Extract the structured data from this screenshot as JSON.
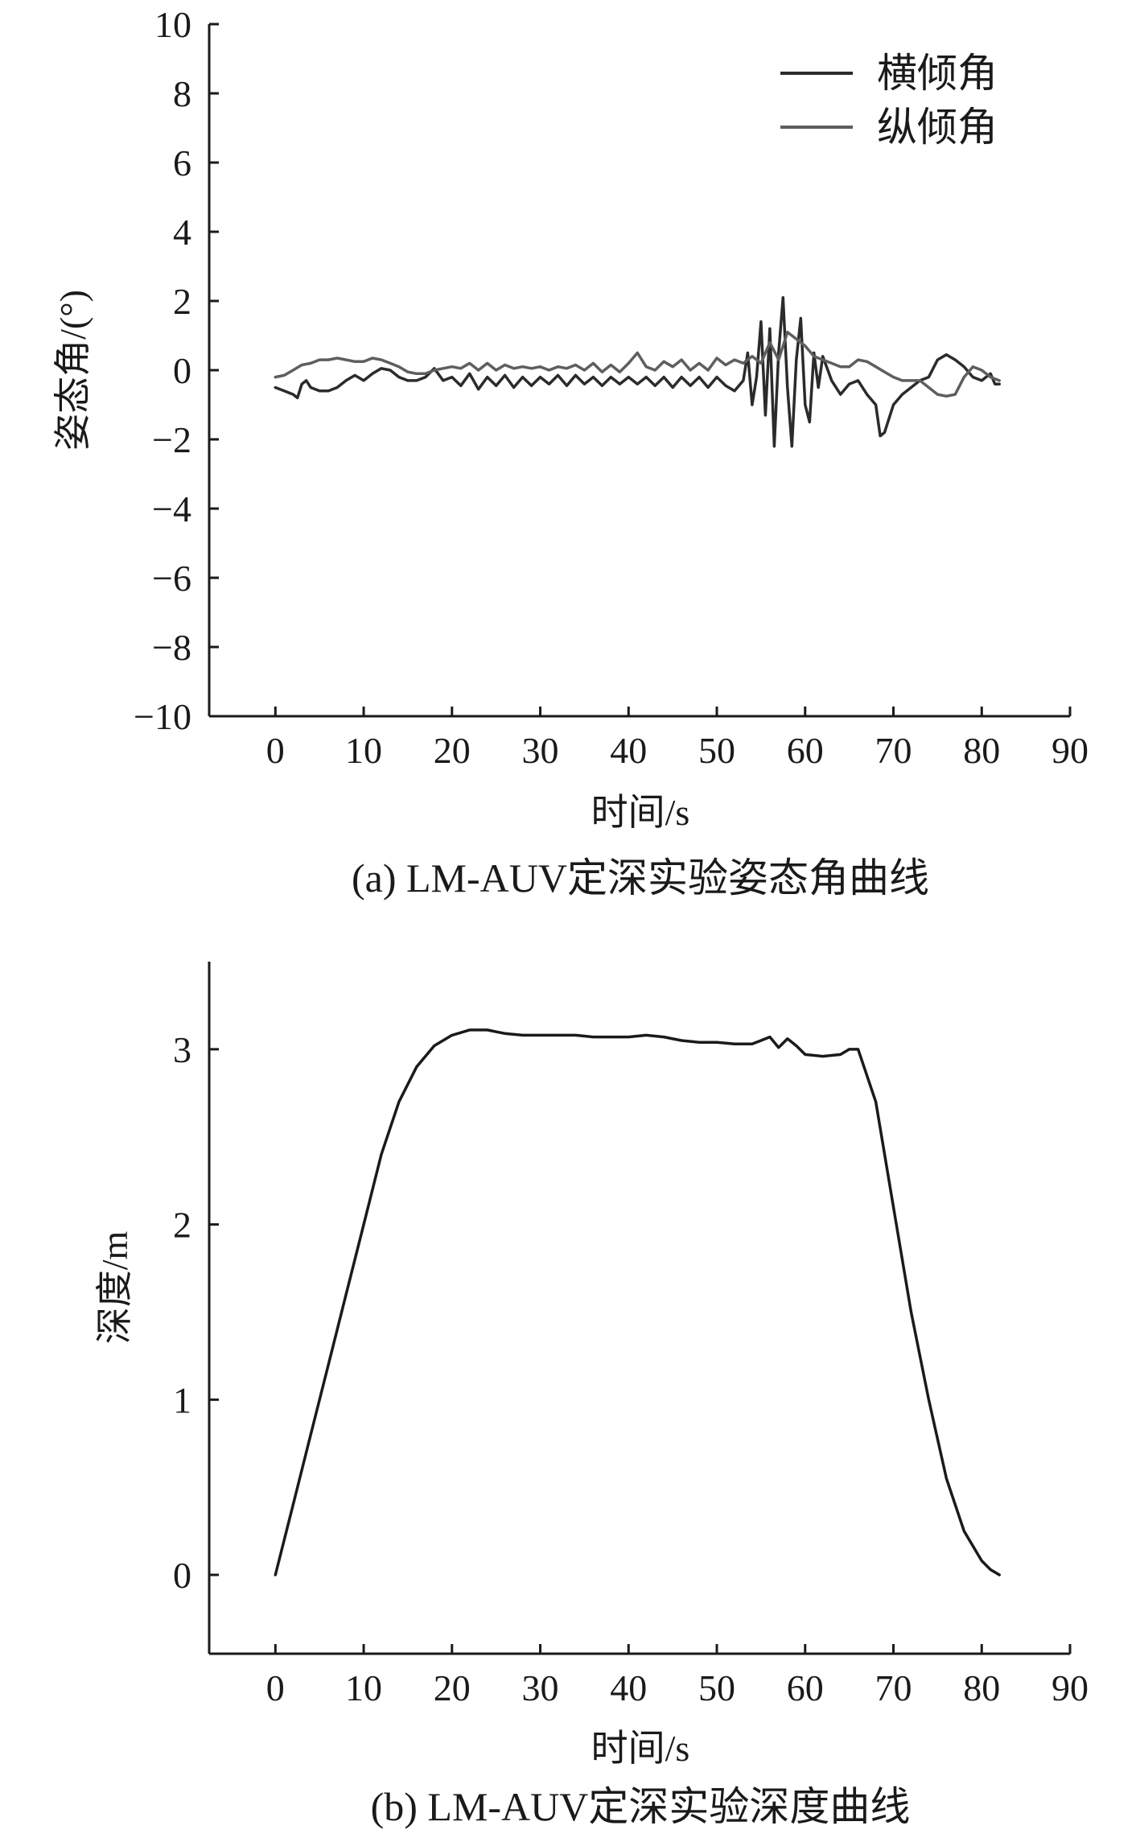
{
  "chart_data": [
    {
      "type": "line",
      "caption": "(a) LM-AUV定深实验姿态角曲线",
      "xlabel": "时间/s",
      "ylabel": "姿态角/(°)",
      "xlim": [
        -7.5,
        90
      ],
      "ylim": [
        -10,
        10
      ],
      "xticks": [
        0,
        10,
        20,
        30,
        40,
        50,
        60,
        70,
        80,
        90
      ],
      "yticks": [
        -10,
        -8,
        -6,
        -4,
        -2,
        0,
        2,
        4,
        6,
        8,
        10
      ],
      "ytick_labels": [
        "−10",
        "−8",
        "−6",
        "−4",
        "−2",
        "0",
        "2",
        "4",
        "6",
        "8",
        "10"
      ],
      "grid": false,
      "legend_position": "top-right",
      "series": [
        {
          "name": "横倾角",
          "color": "#2b2b2b",
          "points": [
            [
              0,
              -0.5
            ],
            [
              1,
              -0.6
            ],
            [
              2,
              -0.7
            ],
            [
              2.5,
              -0.8
            ],
            [
              3,
              -0.4
            ],
            [
              3.5,
              -0.3
            ],
            [
              4,
              -0.5
            ],
            [
              5,
              -0.6
            ],
            [
              6,
              -0.6
            ],
            [
              7,
              -0.5
            ],
            [
              8,
              -0.3
            ],
            [
              9,
              -0.15
            ],
            [
              10,
              -0.3
            ],
            [
              11,
              -0.1
            ],
            [
              12,
              0.05
            ],
            [
              13,
              0.0
            ],
            [
              14,
              -0.2
            ],
            [
              15,
              -0.3
            ],
            [
              16,
              -0.3
            ],
            [
              17,
              -0.2
            ],
            [
              18,
              0.05
            ],
            [
              19,
              -0.3
            ],
            [
              20,
              -0.2
            ],
            [
              21,
              -0.45
            ],
            [
              22,
              -0.1
            ],
            [
              23,
              -0.55
            ],
            [
              24,
              -0.2
            ],
            [
              25,
              -0.45
            ],
            [
              26,
              -0.15
            ],
            [
              27,
              -0.5
            ],
            [
              28,
              -0.2
            ],
            [
              29,
              -0.45
            ],
            [
              30,
              -0.2
            ],
            [
              31,
              -0.4
            ],
            [
              32,
              -0.15
            ],
            [
              33,
              -0.45
            ],
            [
              34,
              -0.15
            ],
            [
              35,
              -0.4
            ],
            [
              36,
              -0.2
            ],
            [
              37,
              -0.45
            ],
            [
              38,
              -0.2
            ],
            [
              39,
              -0.4
            ],
            [
              40,
              -0.2
            ],
            [
              41,
              -0.4
            ],
            [
              42,
              -0.2
            ],
            [
              43,
              -0.45
            ],
            [
              44,
              -0.2
            ],
            [
              45,
              -0.5
            ],
            [
              46,
              -0.2
            ],
            [
              47,
              -0.45
            ],
            [
              48,
              -0.2
            ],
            [
              49,
              -0.5
            ],
            [
              50,
              -0.2
            ],
            [
              51,
              -0.45
            ],
            [
              52,
              -0.6
            ],
            [
              53,
              -0.3
            ],
            [
              53.5,
              0.5
            ],
            [
              54,
              -1.0
            ],
            [
              54.5,
              -0.2
            ],
            [
              55,
              1.4
            ],
            [
              55.5,
              -1.3
            ],
            [
              56,
              1.2
            ],
            [
              56.5,
              -2.2
            ],
            [
              57,
              0.5
            ],
            [
              57.5,
              2.1
            ],
            [
              58,
              -0.5
            ],
            [
              58.5,
              -2.2
            ],
            [
              59,
              0.3
            ],
            [
              59.5,
              1.5
            ],
            [
              60,
              -1.0
            ],
            [
              60.5,
              -1.5
            ],
            [
              61,
              0.5
            ],
            [
              61.5,
              -0.5
            ],
            [
              62,
              0.4
            ],
            [
              63,
              -0.3
            ],
            [
              64,
              -0.7
            ],
            [
              65,
              -0.4
            ],
            [
              66,
              -0.3
            ],
            [
              67,
              -0.7
            ],
            [
              68,
              -1.0
            ],
            [
              68.5,
              -1.9
            ],
            [
              69,
              -1.8
            ],
            [
              70,
              -1.0
            ],
            [
              71,
              -0.7
            ],
            [
              72,
              -0.5
            ],
            [
              73,
              -0.3
            ],
            [
              74,
              -0.2
            ],
            [
              75,
              0.3
            ],
            [
              76,
              0.45
            ],
            [
              77,
              0.3
            ],
            [
              78,
              0.1
            ],
            [
              79,
              -0.2
            ],
            [
              80,
              -0.3
            ],
            [
              81,
              -0.1
            ],
            [
              81.5,
              -0.4
            ],
            [
              82,
              -0.4
            ]
          ]
        },
        {
          "name": "纵倾角",
          "color": "#5e5e5e",
          "points": [
            [
              0,
              -0.2
            ],
            [
              1,
              -0.15
            ],
            [
              2,
              0.0
            ],
            [
              3,
              0.15
            ],
            [
              4,
              0.2
            ],
            [
              5,
              0.3
            ],
            [
              6,
              0.3
            ],
            [
              7,
              0.35
            ],
            [
              8,
              0.3
            ],
            [
              9,
              0.25
            ],
            [
              10,
              0.25
            ],
            [
              11,
              0.35
            ],
            [
              12,
              0.3
            ],
            [
              13,
              0.2
            ],
            [
              14,
              0.1
            ],
            [
              15,
              -0.05
            ],
            [
              16,
              -0.1
            ],
            [
              17,
              -0.1
            ],
            [
              18,
              0.0
            ],
            [
              19,
              0.05
            ],
            [
              20,
              0.1
            ],
            [
              21,
              0.05
            ],
            [
              22,
              0.2
            ],
            [
              23,
              0.0
            ],
            [
              24,
              0.2
            ],
            [
              25,
              0.0
            ],
            [
              26,
              0.15
            ],
            [
              27,
              0.05
            ],
            [
              28,
              0.1
            ],
            [
              29,
              0.05
            ],
            [
              30,
              0.1
            ],
            [
              31,
              0.0
            ],
            [
              32,
              0.1
            ],
            [
              33,
              0.05
            ],
            [
              34,
              0.15
            ],
            [
              35,
              0.0
            ],
            [
              36,
              0.2
            ],
            [
              37,
              -0.05
            ],
            [
              38,
              0.15
            ],
            [
              39,
              -0.05
            ],
            [
              40,
              0.2
            ],
            [
              41,
              0.5
            ],
            [
              42,
              0.1
            ],
            [
              43,
              0.0
            ],
            [
              44,
              0.25
            ],
            [
              45,
              0.1
            ],
            [
              46,
              0.3
            ],
            [
              47,
              0.0
            ],
            [
              48,
              0.2
            ],
            [
              49,
              0.0
            ],
            [
              50,
              0.35
            ],
            [
              51,
              0.15
            ],
            [
              52,
              0.3
            ],
            [
              53,
              0.2
            ],
            [
              54,
              0.4
            ],
            [
              55,
              0.2
            ],
            [
              56,
              0.8
            ],
            [
              57,
              0.3
            ],
            [
              58,
              1.1
            ],
            [
              59,
              0.9
            ],
            [
              60,
              0.7
            ],
            [
              61,
              0.4
            ],
            [
              62,
              0.3
            ],
            [
              63,
              0.2
            ],
            [
              64,
              0.1
            ],
            [
              65,
              0.1
            ],
            [
              66,
              0.3
            ],
            [
              67,
              0.25
            ],
            [
              68,
              0.1
            ],
            [
              69,
              -0.05
            ],
            [
              70,
              -0.2
            ],
            [
              71,
              -0.3
            ],
            [
              72,
              -0.3
            ],
            [
              73,
              -0.3
            ],
            [
              74,
              -0.5
            ],
            [
              75,
              -0.7
            ],
            [
              76,
              -0.75
            ],
            [
              77,
              -0.7
            ],
            [
              78,
              -0.2
            ],
            [
              79,
              0.1
            ],
            [
              80,
              0.0
            ],
            [
              81,
              -0.2
            ],
            [
              82,
              -0.3
            ]
          ]
        }
      ]
    },
    {
      "type": "line",
      "caption": "(b) LM-AUV定深实验深度曲线",
      "xlabel": "时间/s",
      "ylabel": "深度/m",
      "xlim": [
        -7.5,
        90
      ],
      "ylim": [
        -0.45,
        3.5
      ],
      "xticks": [
        0,
        10,
        20,
        30,
        40,
        50,
        60,
        70,
        80,
        90
      ],
      "yticks": [
        0,
        1,
        2,
        3
      ],
      "ytick_labels": [
        "0",
        "1",
        "2",
        "3"
      ],
      "grid": false,
      "series": [
        {
          "color": "#1a1a1a",
          "points": [
            [
              0,
              0.0
            ],
            [
              2,
              0.4
            ],
            [
              4,
              0.8
            ],
            [
              6,
              1.2
            ],
            [
              8,
              1.6
            ],
            [
              10,
              2.0
            ],
            [
              12,
              2.4
            ],
            [
              14,
              2.7
            ],
            [
              16,
              2.9
            ],
            [
              18,
              3.02
            ],
            [
              20,
              3.08
            ],
            [
              22,
              3.11
            ],
            [
              24,
              3.11
            ],
            [
              26,
              3.09
            ],
            [
              28,
              3.08
            ],
            [
              30,
              3.08
            ],
            [
              32,
              3.08
            ],
            [
              34,
              3.08
            ],
            [
              36,
              3.07
            ],
            [
              38,
              3.07
            ],
            [
              40,
              3.07
            ],
            [
              42,
              3.08
            ],
            [
              44,
              3.07
            ],
            [
              46,
              3.05
            ],
            [
              48,
              3.04
            ],
            [
              50,
              3.04
            ],
            [
              52,
              3.03
            ],
            [
              54,
              3.03
            ],
            [
              55,
              3.05
            ],
            [
              56,
              3.07
            ],
            [
              57,
              3.01
            ],
            [
              58,
              3.06
            ],
            [
              59,
              3.02
            ],
            [
              60,
              2.97
            ],
            [
              62,
              2.96
            ],
            [
              64,
              2.97
            ],
            [
              65,
              3.0
            ],
            [
              66,
              3.0
            ],
            [
              68,
              2.7
            ],
            [
              70,
              2.1
            ],
            [
              72,
              1.5
            ],
            [
              74,
              1.0
            ],
            [
              76,
              0.55
            ],
            [
              78,
              0.25
            ],
            [
              80,
              0.08
            ],
            [
              81,
              0.03
            ],
            [
              82,
              0.0
            ]
          ]
        }
      ]
    }
  ]
}
